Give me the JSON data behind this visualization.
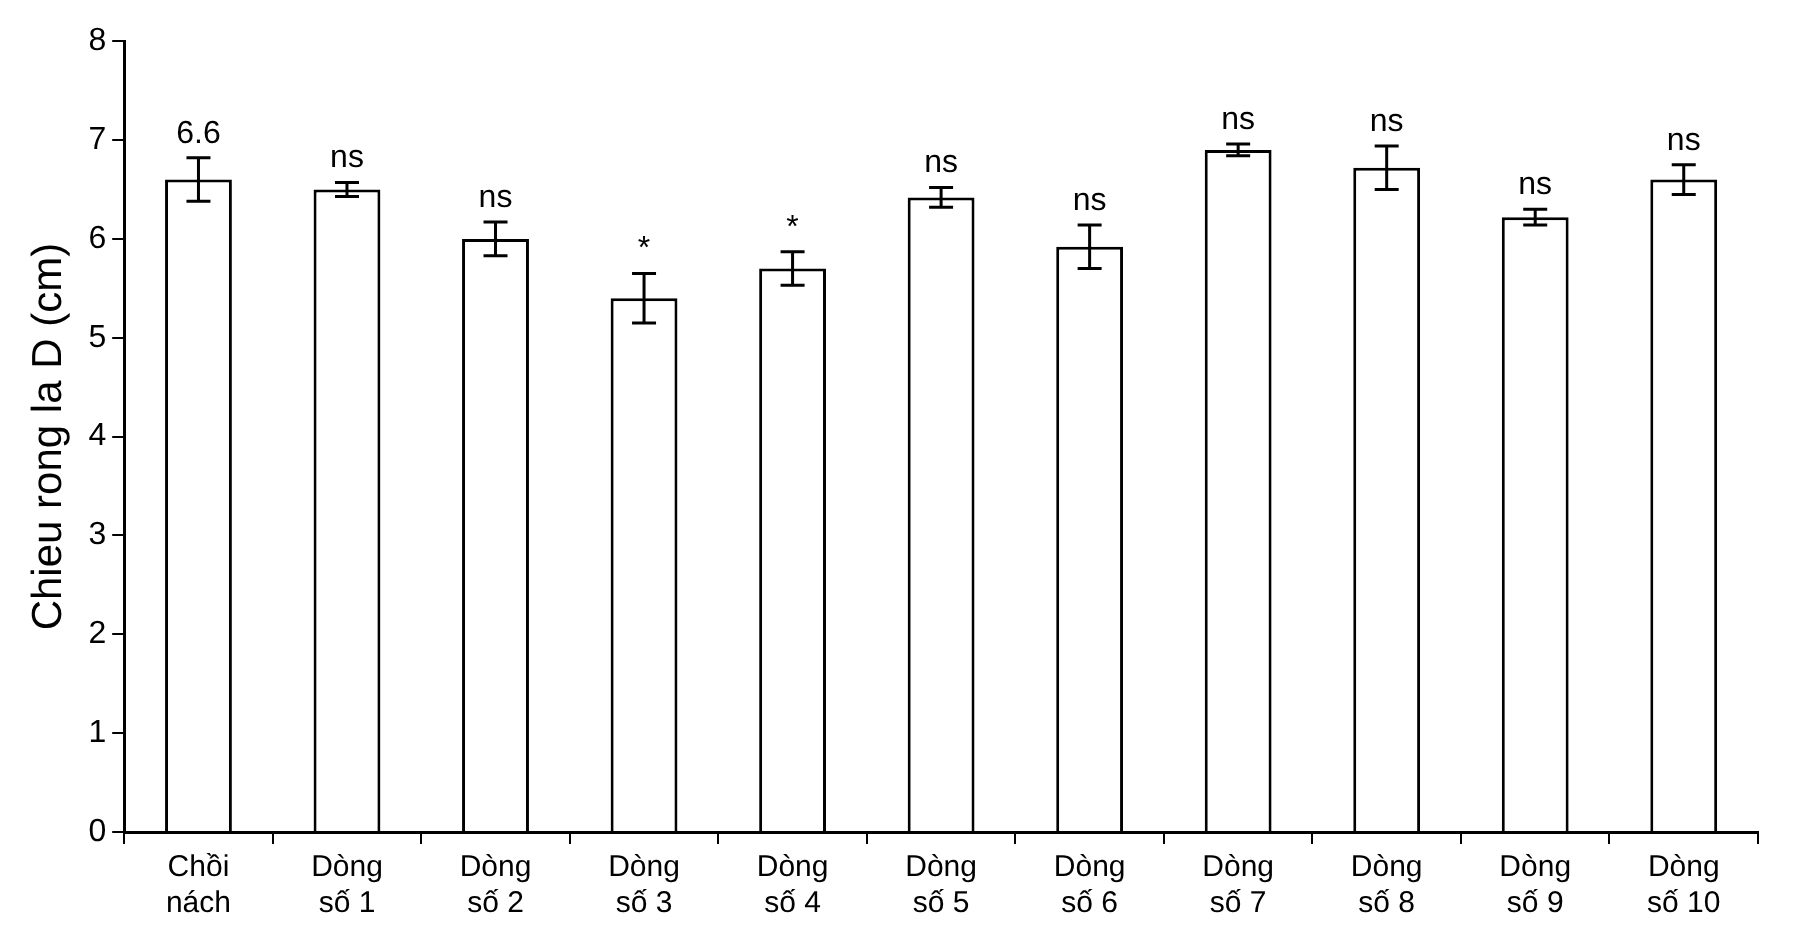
{
  "chart_data": {
    "type": "bar",
    "ylabel": "Chieu rong la D (cm)",
    "categories": [
      "Chồi\nnách",
      "Dòng\nsố 1",
      "Dòng\nsố 2",
      "Dòng\nsố 3",
      "Dòng\nsố 4",
      "Dòng\nsố 5",
      "Dòng\nsố 6",
      "Dòng\nsố 7",
      "Dòng\nsố 8",
      "Dòng\nsố 9",
      "Dòng\nsố 10"
    ],
    "values": [
      6.6,
      6.5,
      6.0,
      5.4,
      5.7,
      6.42,
      5.92,
      6.9,
      6.72,
      6.22,
      6.6
    ],
    "errors": [
      0.22,
      0.07,
      0.17,
      0.25,
      0.17,
      0.1,
      0.22,
      0.06,
      0.22,
      0.08,
      0.15
    ],
    "value_labels": [
      "6.6",
      "ns",
      "ns",
      "*",
      "*",
      "ns",
      "ns",
      "ns",
      "ns",
      "ns",
      "ns"
    ],
    "color": "#ffffff",
    "ylim": [
      0,
      8
    ],
    "yticks": [
      0,
      1,
      2,
      3,
      4,
      5,
      6,
      7,
      8
    ],
    "grid": false,
    "legend": false
  }
}
